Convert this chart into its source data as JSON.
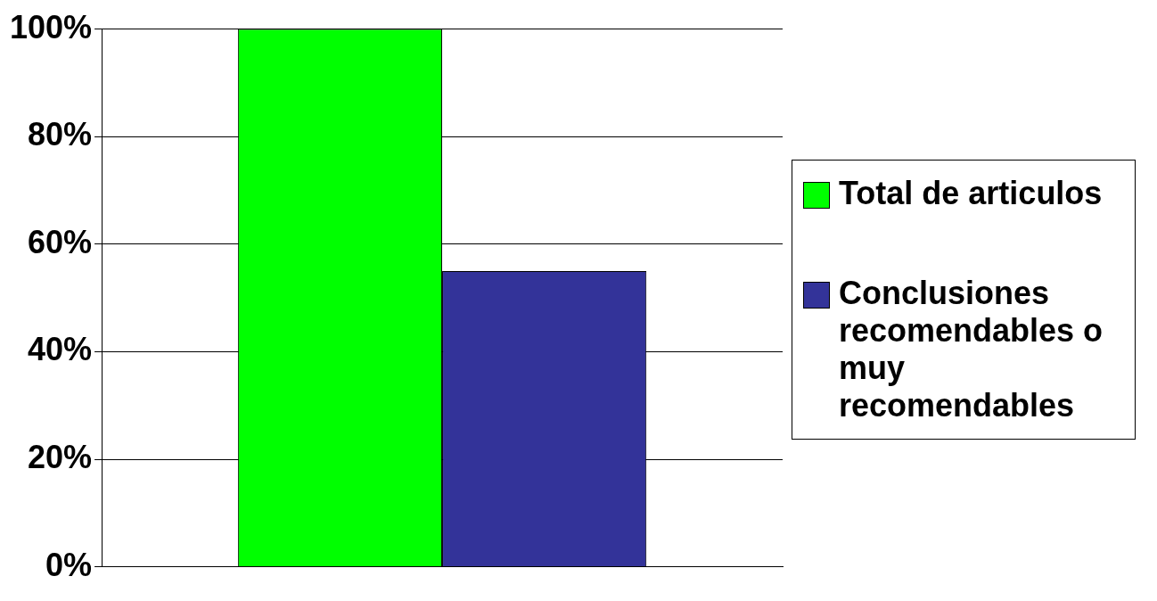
{
  "chart_data": {
    "type": "bar",
    "categories": [
      null
    ],
    "series": [
      {
        "name": "Total de articulos",
        "color": "#00ff00",
        "values": [
          100
        ]
      },
      {
        "name": "Conclusiones recomendables o muy recomendables",
        "color": "#333399",
        "values": [
          55
        ]
      }
    ],
    "ylim": [
      0,
      100
    ],
    "yticks": [
      {
        "value": 0,
        "label": "0%"
      },
      {
        "value": 20,
        "label": "20%"
      },
      {
        "value": 40,
        "label": "40%"
      },
      {
        "value": 60,
        "label": "60%"
      },
      {
        "value": 80,
        "label": "80%"
      },
      {
        "value": 100,
        "label": "100%"
      }
    ],
    "grid": "y",
    "legend": "right"
  }
}
